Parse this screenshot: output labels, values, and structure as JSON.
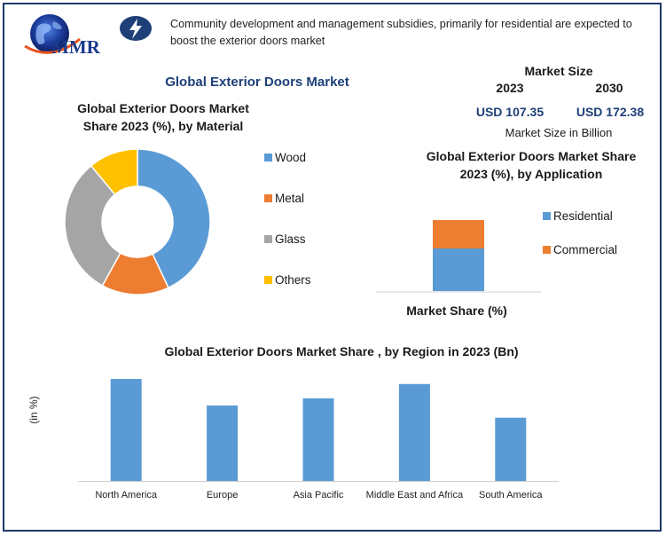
{
  "header": {
    "logo_text": "MMR",
    "headline": "Community development and management subsidies, primarily for residential are expected to boost the exterior doors market"
  },
  "main_title": "Global Exterior Doors Market",
  "market_size": {
    "title": "Market Size",
    "year_start": "2023",
    "year_end": "2030",
    "value_start": "USD 107.35",
    "value_end": "USD 172.38",
    "unit": "Market Size in Billion"
  },
  "colors": {
    "blue": "#5b9bd5",
    "orange": "#ed7d31",
    "gray": "#a5a5a5",
    "yellow": "#ffc000",
    "navy": "#1e3f78"
  },
  "chart_data": [
    {
      "type": "pie",
      "variant": "donut",
      "title": "Global Exterior Doors Market Share 2023 (%), by Material",
      "categories": [
        "Wood",
        "Metal",
        "Glass",
        "Others"
      ],
      "values": [
        43,
        15,
        31,
        11
      ],
      "colors": [
        "#5b9bd5",
        "#ed7d31",
        "#a5a5a5",
        "#ffc000"
      ],
      "legend_position": "right"
    },
    {
      "type": "bar",
      "variant": "stacked",
      "title": "Global Exterior Doors Market Share 2023 (%), by Application",
      "xlabel": "Market Share (%)",
      "series": [
        {
          "name": "Residential",
          "values": [
            60
          ]
        },
        {
          "name": "Commercial",
          "values": [
            40
          ]
        }
      ],
      "colors": [
        "#5b9bd5",
        "#ed7d31"
      ],
      "ylim": [
        0,
        100
      ],
      "legend_position": "right"
    },
    {
      "type": "bar",
      "title": "Global Exterior Doors Market Share , by Region in 2023 (Bn)",
      "ylabel": "(in %)",
      "categories": [
        "North America",
        "Europe",
        "Asia Pacific",
        "Middle East and Africa",
        "South America"
      ],
      "values": [
        100,
        74,
        81,
        95,
        62
      ],
      "ylim": [
        0,
        100
      ],
      "grid": false,
      "color": "#5b9bd5"
    }
  ]
}
